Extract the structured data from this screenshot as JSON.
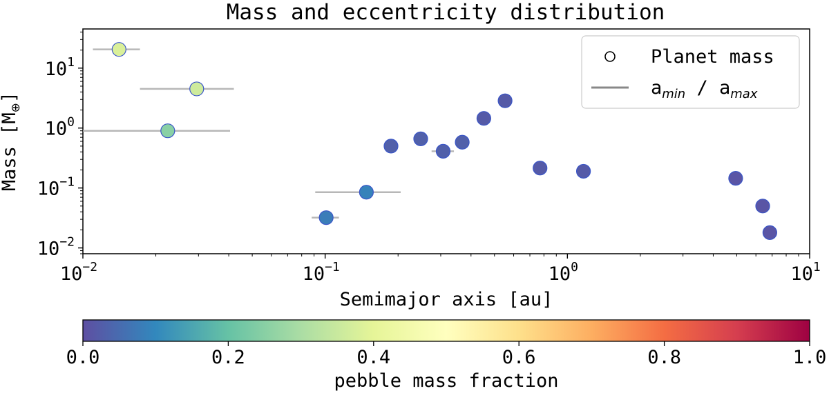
{
  "chart_data": {
    "type": "scatter",
    "title": "Mass and eccentricity distribution",
    "xlabel": "Semimajor axis [au]",
    "ylabel_main": "Mass [M",
    "ylabel_symbol": "⊕",
    "ylabel_end": "]",
    "xscale": "log",
    "yscale": "log",
    "xlim": [
      0.01,
      10
    ],
    "ylim": [
      0.008,
      45
    ],
    "x_ticks": [
      {
        "value": 0.01,
        "base": "10",
        "exp": "−2"
      },
      {
        "value": 0.1,
        "base": "10",
        "exp": "−1"
      },
      {
        "value": 1,
        "base": "10",
        "exp": "0"
      },
      {
        "value": 10,
        "base": "10",
        "exp": "1"
      }
    ],
    "y_ticks": [
      {
        "value": 0.01,
        "base": "10",
        "exp": "−2"
      },
      {
        "value": 0.1,
        "base": "10",
        "exp": "−1"
      },
      {
        "value": 1,
        "base": "10",
        "exp": "0"
      },
      {
        "value": 10,
        "base": "10",
        "exp": "1"
      }
    ],
    "legend": {
      "position": "top-right",
      "entries": [
        {
          "marker": "circle",
          "label": "Planet mass"
        },
        {
          "marker": "line",
          "label_parts": [
            {
              "t": "a",
              "sub": "min"
            },
            {
              "t": " / "
            },
            {
              "t": "a",
              "sub": "max"
            }
          ]
        }
      ]
    },
    "colorbar": {
      "label": "pebble mass fraction",
      "colormap": "Spectral_r",
      "range": [
        0.0,
        1.0
      ],
      "ticks": [
        "0.0",
        "0.2",
        "0.4",
        "0.6",
        "0.8",
        "1.0"
      ],
      "stops": [
        "#5e4fa2",
        "#3288bd",
        "#66c2a5",
        "#abdda4",
        "#e6f598",
        "#ffffbf",
        "#fee08b",
        "#fdae61",
        "#f46d43",
        "#d53e4f",
        "#9e0142"
      ]
    },
    "points": [
      {
        "a": 0.0141,
        "mass": 20.5,
        "a_min": 0.011,
        "a_max": 0.0172,
        "pebble_frac": 0.38
      },
      {
        "a": 0.0295,
        "mass": 4.5,
        "a_min": 0.0172,
        "a_max": 0.042,
        "pebble_frac": 0.36
      },
      {
        "a": 0.0224,
        "mass": 0.9,
        "a_min": 0.01,
        "a_max": 0.0405,
        "pebble_frac": 0.25
      },
      {
        "a": 0.101,
        "mass": 0.032,
        "a_min": 0.088,
        "a_max": 0.114,
        "pebble_frac": 0.08
      },
      {
        "a": 0.148,
        "mass": 0.085,
        "a_min": 0.091,
        "a_max": 0.205,
        "pebble_frac": 0.09
      },
      {
        "a": 0.187,
        "mass": 0.5,
        "a_min": 0.18,
        "a_max": 0.195,
        "pebble_frac": 0.03
      },
      {
        "a": 0.248,
        "mass": 0.66,
        "a_min": 0.24,
        "a_max": 0.256,
        "pebble_frac": 0.03
      },
      {
        "a": 0.307,
        "mass": 0.41,
        "a_min": 0.275,
        "a_max": 0.34,
        "pebble_frac": 0.03
      },
      {
        "a": 0.368,
        "mass": 0.58,
        "a_min": 0.352,
        "a_max": 0.384,
        "pebble_frac": 0.03
      },
      {
        "a": 0.452,
        "mass": 1.45,
        "a_min": 0.43,
        "a_max": 0.475,
        "pebble_frac": 0.02
      },
      {
        "a": 0.553,
        "mass": 2.85,
        "a_min": 0.535,
        "a_max": 0.57,
        "pebble_frac": 0.02
      },
      {
        "a": 0.771,
        "mass": 0.215,
        "a_min": 0.755,
        "a_max": 0.785,
        "pebble_frac": 0.02
      },
      {
        "a": 1.165,
        "mass": 0.19,
        "a_min": 1.15,
        "a_max": 1.18,
        "pebble_frac": 0.02
      },
      {
        "a": 4.95,
        "mass": 0.145,
        "a_min": 4.9,
        "a_max": 5.0,
        "pebble_frac": 0.01
      },
      {
        "a": 6.4,
        "mass": 0.05,
        "a_min": 6.35,
        "a_max": 6.45,
        "pebble_frac": 0.01
      },
      {
        "a": 6.85,
        "mass": 0.018,
        "a_min": 6.8,
        "a_max": 6.9,
        "pebble_frac": 0.01
      }
    ]
  }
}
